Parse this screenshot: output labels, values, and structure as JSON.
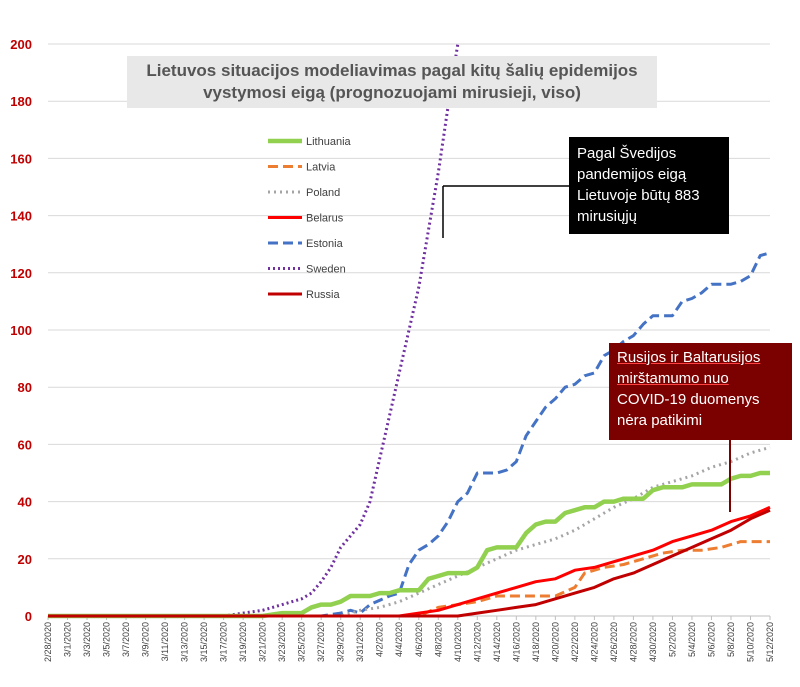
{
  "chart_data": {
    "type": "line",
    "title": "Lietuvos situacijos modeliavimas pagal kitų šalių epidemijos vystymosi eigą (prognozuojami mirusieji, viso)",
    "ylim": [
      0,
      200
    ],
    "yticks": [
      "0",
      "20",
      "40",
      "60",
      "80",
      "100",
      "120",
      "140",
      "160",
      "180",
      "200"
    ],
    "xlim": [
      0,
      74
    ],
    "x_labels": [
      "2/28/2020",
      "3/1/2020",
      "3/3/2020",
      "3/5/2020",
      "3/7/2020",
      "3/9/2020",
      "3/11/2020",
      "3/13/2020",
      "3/15/2020",
      "3/17/2020",
      "3/19/2020",
      "3/21/2020",
      "3/23/2020",
      "3/25/2020",
      "3/27/2020",
      "3/29/2020",
      "3/31/2020",
      "4/2/2020",
      "4/4/2020",
      "4/6/2020",
      "4/8/2020",
      "4/10/2020",
      "4/12/2020",
      "4/14/2020",
      "4/16/2020",
      "4/18/2020",
      "4/20/2020",
      "4/22/2020",
      "4/24/2020",
      "4/26/2020",
      "4/28/2020",
      "4/30/2020",
      "5/2/2020",
      "5/4/2020",
      "5/6/2020",
      "5/8/2020",
      "5/10/2020",
      "5/12/2020"
    ],
    "grid": true,
    "legend_position": "upper-left",
    "series": [
      {
        "name": "Lithuania",
        "color": "#92d050",
        "dash": "solid",
        "points": [
          [
            0,
            0
          ],
          [
            22,
            0
          ],
          [
            24,
            1
          ],
          [
            26,
            1
          ],
          [
            27,
            3
          ],
          [
            28,
            4
          ],
          [
            29,
            4
          ],
          [
            30,
            5
          ],
          [
            31,
            7
          ],
          [
            33,
            7
          ],
          [
            34,
            8
          ],
          [
            35,
            8
          ],
          [
            36,
            9
          ],
          [
            38,
            9
          ],
          [
            39,
            13
          ],
          [
            40,
            14
          ],
          [
            41,
            15
          ],
          [
            43,
            15
          ],
          [
            44,
            17
          ],
          [
            45,
            23
          ],
          [
            46,
            24
          ],
          [
            48,
            24
          ],
          [
            49,
            29
          ],
          [
            50,
            32
          ],
          [
            51,
            33
          ],
          [
            52,
            33
          ],
          [
            53,
            36
          ],
          [
            54,
            37
          ],
          [
            55,
            38
          ],
          [
            56,
            38
          ],
          [
            57,
            40
          ],
          [
            58,
            40
          ],
          [
            59,
            41
          ],
          [
            61,
            41
          ],
          [
            62,
            44
          ],
          [
            63,
            45
          ],
          [
            65,
            45
          ],
          [
            66,
            46
          ],
          [
            69,
            46
          ],
          [
            70,
            48
          ],
          [
            71,
            49
          ],
          [
            72,
            49
          ],
          [
            73,
            50
          ],
          [
            74,
            50
          ]
        ]
      },
      {
        "name": "Latvia",
        "color": "#ed7d31",
        "dash": "10,5",
        "points": [
          [
            0,
            0
          ],
          [
            38,
            0
          ],
          [
            40,
            3
          ],
          [
            42,
            4
          ],
          [
            44,
            5
          ],
          [
            46,
            7
          ],
          [
            52,
            7
          ],
          [
            54,
            10
          ],
          [
            55,
            15
          ],
          [
            57,
            17
          ],
          [
            59,
            18
          ],
          [
            61,
            20
          ],
          [
            63,
            22
          ],
          [
            65,
            23
          ],
          [
            67,
            23
          ],
          [
            69,
            24
          ],
          [
            71,
            26
          ],
          [
            74,
            26
          ]
        ]
      },
      {
        "name": "Poland",
        "color": "#a5a5a5",
        "dash": "2,4",
        "points": [
          [
            0,
            0
          ],
          [
            30,
            0
          ],
          [
            32,
            2
          ],
          [
            34,
            3
          ],
          [
            36,
            5
          ],
          [
            38,
            8
          ],
          [
            40,
            11
          ],
          [
            42,
            14
          ],
          [
            44,
            17
          ],
          [
            46,
            20
          ],
          [
            48,
            23
          ],
          [
            50,
            25
          ],
          [
            52,
            27
          ],
          [
            54,
            30
          ],
          [
            56,
            34
          ],
          [
            58,
            38
          ],
          [
            60,
            41
          ],
          [
            62,
            45
          ],
          [
            64,
            47
          ],
          [
            66,
            49
          ],
          [
            68,
            52
          ],
          [
            70,
            54
          ],
          [
            72,
            57
          ],
          [
            74,
            59
          ]
        ]
      },
      {
        "name": "Belarus",
        "color": "#ff0000",
        "dash": "solid",
        "points": [
          [
            0,
            0
          ],
          [
            36,
            0
          ],
          [
            38,
            1
          ],
          [
            40,
            2
          ],
          [
            42,
            4
          ],
          [
            44,
            6
          ],
          [
            46,
            8
          ],
          [
            48,
            10
          ],
          [
            50,
            12
          ],
          [
            52,
            13
          ],
          [
            54,
            16
          ],
          [
            56,
            17
          ],
          [
            58,
            19
          ],
          [
            60,
            21
          ],
          [
            62,
            23
          ],
          [
            64,
            26
          ],
          [
            66,
            28
          ],
          [
            68,
            30
          ],
          [
            70,
            33
          ],
          [
            72,
            35
          ],
          [
            74,
            38
          ]
        ]
      },
      {
        "name": "Estonia",
        "color": "#4472c4",
        "dash": "10,5",
        "points": [
          [
            0,
            0
          ],
          [
            28,
            0
          ],
          [
            30,
            1
          ],
          [
            31,
            2
          ],
          [
            32,
            1
          ],
          [
            33,
            4
          ],
          [
            35,
            7
          ],
          [
            36,
            8
          ],
          [
            37,
            18
          ],
          [
            38,
            23
          ],
          [
            39,
            25
          ],
          [
            40,
            28
          ],
          [
            41,
            33
          ],
          [
            42,
            40
          ],
          [
            43,
            43
          ],
          [
            44,
            50
          ],
          [
            46,
            50
          ],
          [
            47,
            51
          ],
          [
            48,
            54
          ],
          [
            49,
            63
          ],
          [
            50,
            68
          ],
          [
            51,
            73
          ],
          [
            52,
            76
          ],
          [
            53,
            80
          ],
          [
            54,
            81
          ],
          [
            55,
            84
          ],
          [
            56,
            85
          ],
          [
            57,
            91
          ],
          [
            58,
            93
          ],
          [
            59,
            96
          ],
          [
            60,
            98
          ],
          [
            61,
            102
          ],
          [
            62,
            105
          ],
          [
            64,
            105
          ],
          [
            65,
            110
          ],
          [
            66,
            111
          ],
          [
            67,
            113
          ],
          [
            68,
            116
          ],
          [
            70,
            116
          ],
          [
            71,
            117
          ],
          [
            72,
            119
          ],
          [
            73,
            126
          ],
          [
            74,
            127
          ]
        ]
      },
      {
        "name": "Sweden",
        "color": "#7030a0",
        "dash": "2,3",
        "points": [
          [
            0,
            0
          ],
          [
            18,
            0
          ],
          [
            20,
            1
          ],
          [
            22,
            2
          ],
          [
            24,
            4
          ],
          [
            26,
            6
          ],
          [
            27,
            8
          ],
          [
            28,
            12
          ],
          [
            29,
            17
          ],
          [
            30,
            24
          ],
          [
            31,
            28
          ],
          [
            32,
            32
          ],
          [
            33,
            40
          ],
          [
            34,
            55
          ],
          [
            35,
            70
          ],
          [
            36,
            85
          ],
          [
            37,
            100
          ],
          [
            38,
            115
          ],
          [
            39,
            135
          ],
          [
            40,
            155
          ],
          [
            41,
            178
          ],
          [
            42,
            200
          ]
        ]
      },
      {
        "name": "Russia",
        "color": "#c00000",
        "dash": "solid",
        "points": [
          [
            0,
            0
          ],
          [
            42,
            0
          ],
          [
            44,
            1
          ],
          [
            46,
            2
          ],
          [
            48,
            3
          ],
          [
            50,
            4
          ],
          [
            52,
            6
          ],
          [
            54,
            8
          ],
          [
            56,
            10
          ],
          [
            58,
            13
          ],
          [
            60,
            15
          ],
          [
            62,
            18
          ],
          [
            64,
            21
          ],
          [
            66,
            24
          ],
          [
            68,
            27
          ],
          [
            70,
            30
          ],
          [
            72,
            34
          ],
          [
            74,
            37
          ]
        ]
      }
    ]
  },
  "callouts": {
    "sweden": [
      "Pagal Švedijos",
      "pandemijos eigą",
      "Lietuvoje būtų 883",
      "mirusiųjų"
    ],
    "russia": [
      "Rusijos ir Baltarusijos",
      "mirštamumo nuo",
      "COVID-19 duomenys",
      "nėra patikimi"
    ]
  }
}
